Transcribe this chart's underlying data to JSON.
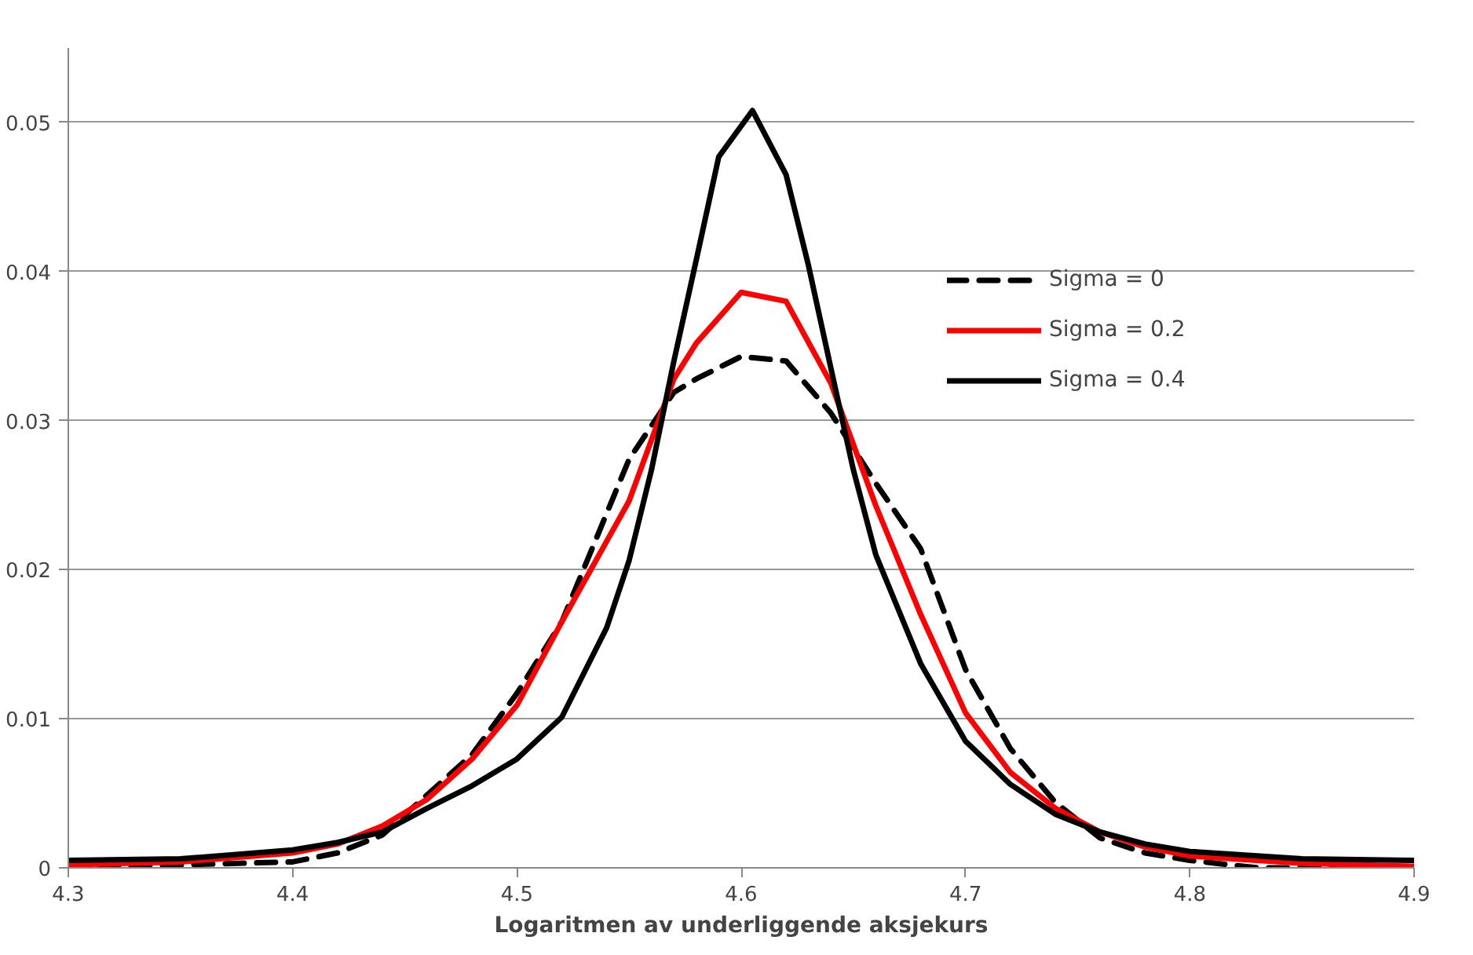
{
  "chart_data": {
    "type": "line",
    "xlabel": "Logaritmen av underliggende aksjekurs",
    "xlim": [
      4.3,
      4.9
    ],
    "xticks": [
      4.3,
      4.4,
      4.5,
      4.6,
      4.7,
      4.8,
      4.9
    ],
    "ylim": [
      0,
      0.055
    ],
    "yticks": [
      0,
      0.01,
      0.02,
      0.03,
      0.04,
      0.05
    ],
    "grid": "y",
    "legend": "top right",
    "series": [
      {
        "name": "Sigma = 0",
        "color": "#000000",
        "line_style": "dashed",
        "x": [
          4.3,
          4.35,
          4.4,
          4.42,
          4.44,
          4.46,
          4.48,
          4.5,
          4.52,
          4.55,
          4.57,
          4.58,
          4.6,
          4.62,
          4.64,
          4.66,
          4.68,
          4.7,
          4.72,
          4.74,
          4.76,
          4.78,
          4.8,
          4.83,
          4.9
        ],
        "values": [
          0,
          0.0002,
          0.0004,
          0.001,
          0.0022,
          0.0049,
          0.0076,
          0.0117,
          0.0165,
          0.0274,
          0.0319,
          0.0328,
          0.0343,
          0.034,
          0.0305,
          0.0258,
          0.0214,
          0.0133,
          0.008,
          0.0044,
          0.002,
          0.001,
          0.0005,
          0,
          0
        ]
      },
      {
        "name": "Sigma = 0.2",
        "color": "#ff0000",
        "line_style": "solid",
        "x": [
          4.3,
          4.35,
          4.4,
          4.42,
          4.44,
          4.46,
          4.48,
          4.5,
          4.52,
          4.55,
          4.57,
          4.58,
          4.6,
          4.62,
          4.64,
          4.66,
          4.68,
          4.7,
          4.72,
          4.74,
          4.76,
          4.78,
          4.8,
          4.85,
          4.9
        ],
        "values": [
          0.0002,
          0.0004,
          0.001,
          0.0016,
          0.0028,
          0.0046,
          0.0073,
          0.0109,
          0.0165,
          0.0246,
          0.0328,
          0.0352,
          0.0386,
          0.038,
          0.0325,
          0.0243,
          0.017,
          0.0104,
          0.0064,
          0.004,
          0.0024,
          0.0014,
          0.0008,
          0.0003,
          0.0001
        ]
      },
      {
        "name": "Sigma = 0.4",
        "color": "#000000",
        "line_style": "solid",
        "x": [
          4.3,
          4.35,
          4.4,
          4.42,
          4.44,
          4.46,
          4.48,
          4.5,
          4.52,
          4.54,
          4.55,
          4.56,
          4.57,
          4.58,
          4.59,
          4.605,
          4.62,
          4.63,
          4.64,
          4.65,
          4.66,
          4.68,
          4.7,
          4.72,
          4.74,
          4.76,
          4.78,
          4.8,
          4.85,
          4.9
        ],
        "values": [
          0.0005,
          0.0006,
          0.0012,
          0.0017,
          0.0024,
          0.004,
          0.0055,
          0.0073,
          0.0101,
          0.0161,
          0.0206,
          0.0267,
          0.034,
          0.0408,
          0.0477,
          0.0508,
          0.0465,
          0.0404,
          0.0335,
          0.0267,
          0.021,
          0.0137,
          0.0085,
          0.0056,
          0.0036,
          0.0024,
          0.0016,
          0.0011,
          0.0006,
          0.0005
        ]
      }
    ]
  }
}
